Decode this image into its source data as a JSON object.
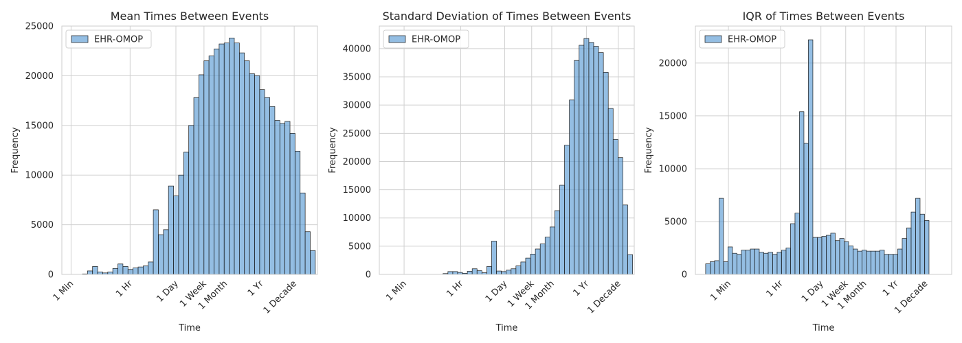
{
  "chart_data": [
    {
      "type": "bar",
      "title": "Mean Times Between Events",
      "xlabel": "Time",
      "ylabel": "Frequency",
      "ylim": [
        0,
        25000
      ],
      "yticks": [
        0,
        5000,
        10000,
        15000,
        20000,
        25000
      ],
      "xscale": "log-time",
      "xticks": [
        {
          "label": "1 Min",
          "log10_seconds": 1.778
        },
        {
          "label": "1 Hr",
          "log10_seconds": 3.556
        },
        {
          "label": "1 Day",
          "log10_seconds": 4.936
        },
        {
          "label": "1 Week",
          "log10_seconds": 5.782
        },
        {
          "label": "1 Month",
          "log10_seconds": 6.412
        },
        {
          "label": "1 Yr",
          "log10_seconds": 7.499
        },
        {
          "label": "1 Decade",
          "log10_seconds": 8.499
        }
      ],
      "xlim_log10_seconds": [
        1.5,
        9.2
      ],
      "grid": true,
      "legend_position": "top-left",
      "series": [
        {
          "name": "EHR-OMOP",
          "bin_start_log10_seconds": 2.12,
          "bin_width_log10_seconds": 0.1525,
          "values": [
            50,
            350,
            800,
            250,
            150,
            250,
            600,
            1050,
            800,
            500,
            650,
            750,
            850,
            1250,
            6500,
            4000,
            4500,
            8900,
            7900,
            10000,
            12300,
            15000,
            17800,
            20100,
            21500,
            22000,
            22700,
            23200,
            23300,
            23800,
            23300,
            22300,
            21500,
            20200,
            20000,
            18600,
            17800,
            16900,
            15500,
            15200,
            15400,
            14200,
            12400,
            8200,
            4300,
            2400
          ]
        }
      ]
    },
    {
      "type": "bar",
      "title": "Standard Deviation of Times Between Events",
      "xlabel": "Time",
      "ylabel": "Frequency",
      "ylim": [
        0,
        44000
      ],
      "yticks": [
        0,
        5000,
        10000,
        15000,
        20000,
        25000,
        30000,
        35000,
        40000
      ],
      "xscale": "log-time",
      "xticks": [
        {
          "label": "1 Min",
          "log10_seconds": 1.778
        },
        {
          "label": "1 Hr",
          "log10_seconds": 3.556
        },
        {
          "label": "1 Day",
          "log10_seconds": 4.936
        },
        {
          "label": "1 Week",
          "log10_seconds": 5.782
        },
        {
          "label": "1 Month",
          "log10_seconds": 6.412
        },
        {
          "label": "1 Yr",
          "log10_seconds": 7.499
        },
        {
          "label": "1 Decade",
          "log10_seconds": 8.499
        }
      ],
      "xlim_log10_seconds": [
        1.0,
        9.0
      ],
      "grid": true,
      "legend_position": "top-left",
      "series": [
        {
          "name": "EHR-OMOP",
          "bin_start_log10_seconds": 3.0,
          "bin_width_log10_seconds": 0.1525,
          "values": [
            150,
            500,
            500,
            350,
            200,
            550,
            1000,
            650,
            300,
            1400,
            5900,
            600,
            500,
            750,
            1000,
            1500,
            2200,
            2900,
            3600,
            4500,
            5400,
            6600,
            8400,
            11300,
            15800,
            22900,
            30900,
            37900,
            40600,
            41800,
            41100,
            40400,
            39300,
            35800,
            29400,
            23900,
            20700,
            12300,
            3500
          ]
        }
      ]
    },
    {
      "type": "bar",
      "title": "IQR of Times Between Events",
      "xlabel": "Time",
      "ylabel": "Frequency",
      "ylim": [
        0,
        23500
      ],
      "yticks": [
        0,
        5000,
        10000,
        15000,
        20000
      ],
      "xscale": "log-time",
      "xticks": [
        {
          "label": "1 Min",
          "log10_seconds": 1.778
        },
        {
          "label": "1 Hr",
          "log10_seconds": 3.556
        },
        {
          "label": "1 Day",
          "log10_seconds": 4.936
        },
        {
          "label": "1 Week",
          "log10_seconds": 5.782
        },
        {
          "label": "1 Month",
          "log10_seconds": 6.412
        },
        {
          "label": "1 Yr",
          "log10_seconds": 7.499
        },
        {
          "label": "1 Decade",
          "log10_seconds": 8.499
        }
      ],
      "xlim_log10_seconds": [
        0.65,
        9.4
      ],
      "grid": true,
      "legend_position": "top-left",
      "series": [
        {
          "name": "EHR-OMOP",
          "bin_start_log10_seconds": 1.0,
          "bin_width_log10_seconds": 0.1525,
          "values": [
            1000,
            1200,
            1300,
            7200,
            1200,
            2600,
            2000,
            1900,
            2300,
            2300,
            2400,
            2400,
            2100,
            2000,
            2100,
            1900,
            2100,
            2300,
            2500,
            4800,
            5800,
            15400,
            12400,
            22200,
            3500,
            3500,
            3600,
            3700,
            3900,
            3200,
            3400,
            3100,
            2700,
            2400,
            2200,
            2300,
            2200,
            2200,
            2200,
            2300,
            1900,
            1900,
            1900,
            2400,
            3400,
            4400,
            5900,
            7200,
            5700,
            5100
          ]
        }
      ]
    }
  ],
  "colors": {
    "bar_fill": "#5a9bd4",
    "bar_fill_opacity": 0.65,
    "bar_edge": "#1a1a1a",
    "grid": "#d0d0d0",
    "spine": "#cccccc",
    "text": "#262626"
  }
}
